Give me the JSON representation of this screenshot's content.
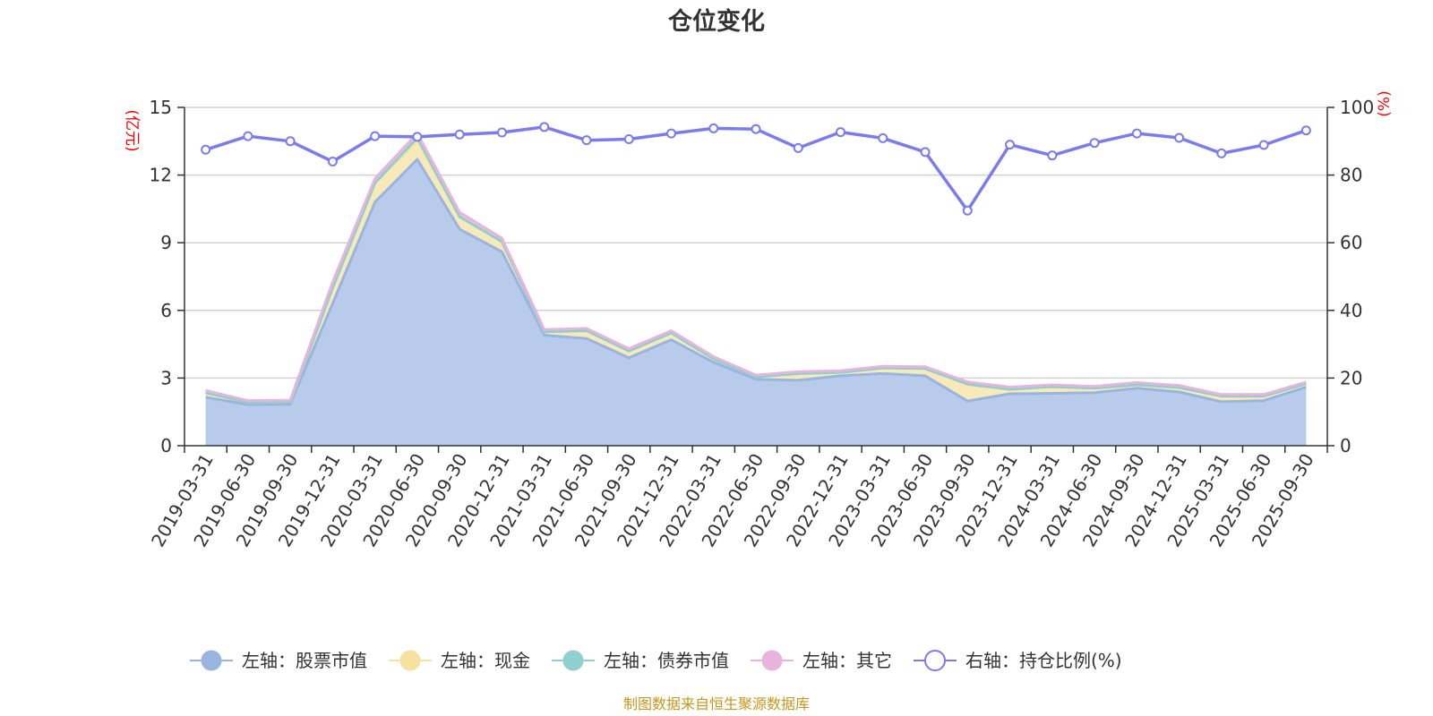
{
  "chart_data": {
    "type": "area",
    "title": "仓位变化",
    "left_axis_unit": "(亿元)",
    "right_axis_unit": "(%)",
    "left_ylim": [
      0,
      15
    ],
    "left_ticks": [
      0,
      3,
      6,
      9,
      12,
      15
    ],
    "right_ylim": [
      0,
      100
    ],
    "right_ticks": [
      0,
      20,
      40,
      60,
      80,
      100
    ],
    "grid": true,
    "legend_position": "bottom",
    "categories": [
      "2019-03-31",
      "2019-06-30",
      "2019-09-30",
      "2019-12-31",
      "2020-03-31",
      "2020-06-30",
      "2020-09-30",
      "2020-12-31",
      "2021-03-31",
      "2021-06-30",
      "2021-09-30",
      "2021-12-31",
      "2022-03-31",
      "2022-06-30",
      "2022-09-30",
      "2022-12-31",
      "2023-03-31",
      "2023-06-30",
      "2023-09-30",
      "2023-12-31",
      "2024-03-31",
      "2024-06-30",
      "2024-09-30",
      "2024-12-31",
      "2025-03-31",
      "2025-06-30",
      "2025-09-30"
    ],
    "series": [
      {
        "name": "左轴：股票市值",
        "axis": "left",
        "stack": true,
        "color": "#9ab4e0",
        "fill": "#b8cbea",
        "values": [
          2.15,
          1.82,
          1.84,
          6.3,
          10.8,
          12.7,
          9.6,
          8.6,
          4.9,
          4.75,
          3.9,
          4.7,
          3.7,
          2.95,
          2.9,
          3.1,
          3.2,
          3.1,
          1.98,
          2.3,
          2.32,
          2.35,
          2.55,
          2.38,
          1.95,
          2.0,
          2.6
        ]
      },
      {
        "name": "左轴：现金",
        "axis": "left",
        "stack": true,
        "color": "#f5e2a0",
        "fill": "#f8eab8",
        "values": [
          0.2,
          0.1,
          0.1,
          0.7,
          0.85,
          0.8,
          0.55,
          0.45,
          0.15,
          0.35,
          0.3,
          0.3,
          0.15,
          0.1,
          0.3,
          0.15,
          0.25,
          0.32,
          0.75,
          0.2,
          0.3,
          0.2,
          0.15,
          0.2,
          0.25,
          0.2,
          0.15
        ]
      },
      {
        "name": "左轴：债券市值",
        "axis": "left",
        "stack": true,
        "color": "#8ecfcf",
        "fill": "#a8dada",
        "values": [
          0,
          0,
          0,
          0,
          0,
          0.15,
          0,
          0,
          0,
          0,
          0,
          0,
          0,
          0,
          0,
          0,
          0,
          0,
          0,
          0,
          0,
          0,
          0,
          0,
          0,
          0,
          0
        ]
      },
      {
        "name": "左轴：其它",
        "axis": "left",
        "stack": true,
        "color": "#e8b4dc",
        "fill": "#edc4e4",
        "values": [
          0.1,
          0.08,
          0.08,
          0.25,
          0.2,
          0.2,
          0.2,
          0.15,
          0.1,
          0.1,
          0.1,
          0.1,
          0.1,
          0.08,
          0.08,
          0.07,
          0.07,
          0.08,
          0.1,
          0.1,
          0.08,
          0.08,
          0.1,
          0.09,
          0.07,
          0.07,
          0.07
        ]
      },
      {
        "name": "右轴：持仓比例(%)",
        "axis": "right",
        "stack": false,
        "color": "#7b7bf0",
        "values": [
          87.5,
          91.5,
          90,
          84,
          91.5,
          91.3,
          92,
          92.6,
          94.2,
          90.3,
          90.6,
          92.3,
          93.8,
          93.6,
          88,
          92.7,
          90.9,
          86.8,
          69.5,
          89,
          85.8,
          89.5,
          92.3,
          91,
          86.4,
          88.9,
          93.2
        ]
      }
    ],
    "source_note": "制图数据来自恒生聚源数据库"
  }
}
